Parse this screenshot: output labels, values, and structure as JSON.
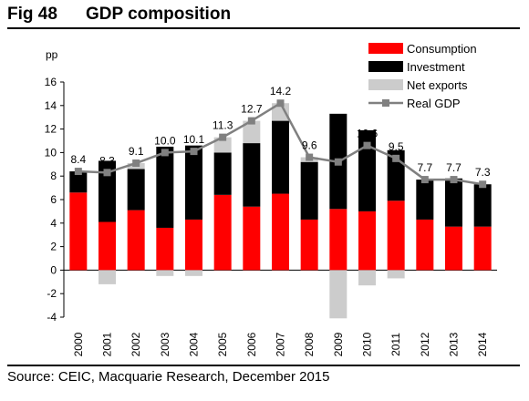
{
  "figure": {
    "number": "Fig 48",
    "title": "GDP composition",
    "source": "Source: CEIC, Macquarie Research, December 2015"
  },
  "chart_data": {
    "type": "bar",
    "stacked": true,
    "ylabel": "pp",
    "ylim": [
      -4,
      16
    ],
    "yticks": [
      -4,
      -2,
      0,
      2,
      4,
      6,
      8,
      10,
      12,
      14,
      16
    ],
    "grid": false,
    "legend_position": "top-right",
    "categories": [
      "2000",
      "2001",
      "2002",
      "2003",
      "2004",
      "2005",
      "2006",
      "2007",
      "2008",
      "2009",
      "2010",
      "2011",
      "2012",
      "2013",
      "2014"
    ],
    "series": [
      {
        "name": "Consumption",
        "type": "bar",
        "color": "#ff0000",
        "values": [
          6.6,
          4.1,
          5.1,
          3.6,
          4.3,
          6.4,
          5.4,
          6.5,
          4.3,
          5.2,
          5.0,
          5.9,
          4.3,
          3.7,
          3.7
        ]
      },
      {
        "name": "Investment",
        "type": "bar",
        "color": "#000000",
        "values": [
          1.8,
          5.2,
          3.5,
          6.9,
          6.3,
          3.6,
          5.4,
          6.2,
          4.9,
          8.1,
          6.9,
          4.3,
          3.4,
          4.1,
          3.6
        ]
      },
      {
        "name": "Net exports",
        "type": "bar",
        "color": "#cccccc",
        "values": [
          0.0,
          -1.2,
          0.5,
          -0.5,
          -0.5,
          1.3,
          1.9,
          1.5,
          0.4,
          -4.1,
          -1.3,
          -0.7,
          0.0,
          0.0,
          0.0
        ]
      },
      {
        "name": "Real GDP",
        "type": "line",
        "color": "#808080",
        "values": [
          8.4,
          8.3,
          9.1,
          10.0,
          10.1,
          11.3,
          12.7,
          14.2,
          9.6,
          9.2,
          10.6,
          9.5,
          7.7,
          7.7,
          7.3
        ],
        "labels": [
          "8.4",
          "8.3",
          "9.1",
          "10.0",
          "10.1",
          "11.3",
          "12.7",
          "14.2",
          "9.6",
          "9.2",
          "10.6",
          "9.5",
          "7.7",
          "7.7",
          "7.3"
        ]
      }
    ]
  }
}
